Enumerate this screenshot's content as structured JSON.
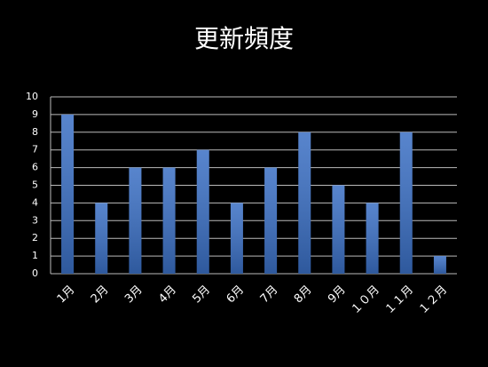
{
  "chart_data": {
    "type": "bar",
    "title": "更新頻度",
    "categories": [
      "1月",
      "2月",
      "3月",
      "4月",
      "5月",
      "6月",
      "7月",
      "8月",
      "9月",
      "１０月",
      "１１月",
      "１２月"
    ],
    "values": [
      9,
      4,
      6,
      6,
      7,
      4,
      6,
      8,
      5,
      4,
      8,
      1
    ],
    "color": "#3a6fc4",
    "ylim": [
      0,
      10
    ],
    "yticks": [
      0,
      1,
      2,
      3,
      4,
      5,
      6,
      7,
      8,
      9,
      10
    ],
    "grid": true
  }
}
